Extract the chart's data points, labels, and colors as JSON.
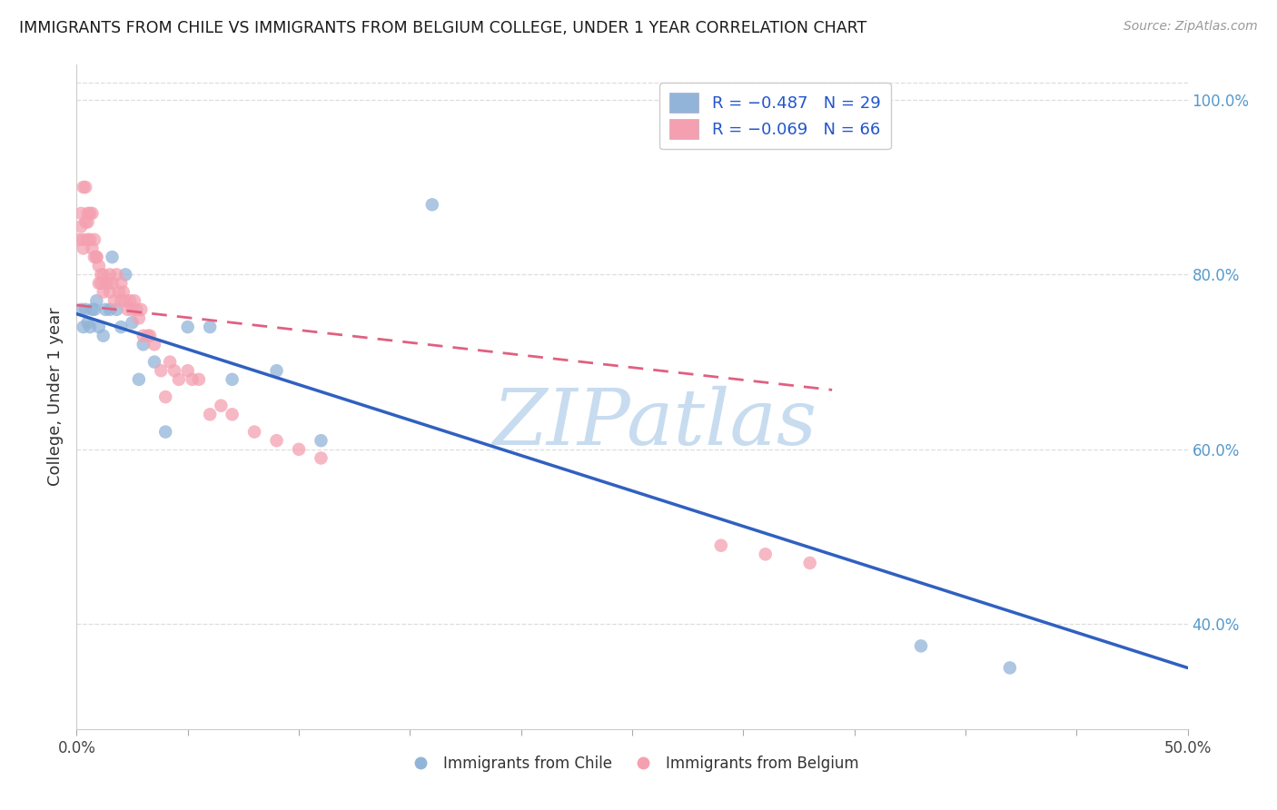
{
  "title": "IMMIGRANTS FROM CHILE VS IMMIGRANTS FROM BELGIUM COLLEGE, UNDER 1 YEAR CORRELATION CHART",
  "source": "Source: ZipAtlas.com",
  "ylabel": "College, Under 1 year",
  "right_ytick_vals": [
    0.4,
    0.6,
    0.8,
    1.0
  ],
  "right_ytick_labels": [
    "40.0%",
    "60.0%",
    "80.0%",
    "100.0%"
  ],
  "xmin": 0.0,
  "xmax": 0.5,
  "ymin": 0.28,
  "ymax": 1.04,
  "legend_line1": "R = −0.487   N = 29",
  "legend_line2": "R = −0.069   N = 66",
  "blue_color": "#92B4D8",
  "pink_color": "#F4A0B0",
  "blue_line_color": "#3060C0",
  "pink_line_color": "#E06080",
  "watermark": "ZIPatlas",
  "watermark_color": "#C8DCF0",
  "legend_label_blue": "Immigrants from Chile",
  "legend_label_pink": "Immigrants from Belgium",
  "blue_x": [
    0.002,
    0.003,
    0.004,
    0.005,
    0.006,
    0.007,
    0.008,
    0.009,
    0.01,
    0.012,
    0.013,
    0.015,
    0.016,
    0.018,
    0.02,
    0.022,
    0.025,
    0.028,
    0.03,
    0.035,
    0.04,
    0.05,
    0.06,
    0.07,
    0.09,
    0.11,
    0.16,
    0.38,
    0.42
  ],
  "blue_y": [
    0.76,
    0.74,
    0.76,
    0.745,
    0.74,
    0.76,
    0.76,
    0.77,
    0.74,
    0.73,
    0.76,
    0.76,
    0.82,
    0.76,
    0.74,
    0.8,
    0.745,
    0.68,
    0.72,
    0.7,
    0.62,
    0.74,
    0.74,
    0.68,
    0.69,
    0.61,
    0.88,
    0.375,
    0.35
  ],
  "pink_x": [
    0.001,
    0.002,
    0.002,
    0.003,
    0.003,
    0.003,
    0.004,
    0.004,
    0.005,
    0.005,
    0.005,
    0.006,
    0.006,
    0.007,
    0.007,
    0.008,
    0.008,
    0.009,
    0.009,
    0.01,
    0.01,
    0.011,
    0.011,
    0.012,
    0.012,
    0.013,
    0.014,
    0.015,
    0.015,
    0.016,
    0.017,
    0.018,
    0.019,
    0.02,
    0.02,
    0.021,
    0.022,
    0.023,
    0.024,
    0.025,
    0.026,
    0.027,
    0.028,
    0.029,
    0.03,
    0.032,
    0.033,
    0.035,
    0.038,
    0.04,
    0.042,
    0.044,
    0.046,
    0.05,
    0.052,
    0.055,
    0.06,
    0.065,
    0.07,
    0.08,
    0.09,
    0.1,
    0.11,
    0.29,
    0.31,
    0.33
  ],
  "pink_y": [
    0.84,
    0.87,
    0.855,
    0.9,
    0.84,
    0.83,
    0.9,
    0.86,
    0.87,
    0.86,
    0.84,
    0.87,
    0.84,
    0.87,
    0.83,
    0.84,
    0.82,
    0.82,
    0.82,
    0.81,
    0.79,
    0.8,
    0.79,
    0.8,
    0.78,
    0.79,
    0.79,
    0.8,
    0.78,
    0.79,
    0.77,
    0.8,
    0.78,
    0.79,
    0.77,
    0.78,
    0.77,
    0.76,
    0.77,
    0.76,
    0.77,
    0.76,
    0.75,
    0.76,
    0.73,
    0.73,
    0.73,
    0.72,
    0.69,
    0.66,
    0.7,
    0.69,
    0.68,
    0.69,
    0.68,
    0.68,
    0.64,
    0.65,
    0.64,
    0.62,
    0.61,
    0.6,
    0.59,
    0.49,
    0.48,
    0.47
  ]
}
